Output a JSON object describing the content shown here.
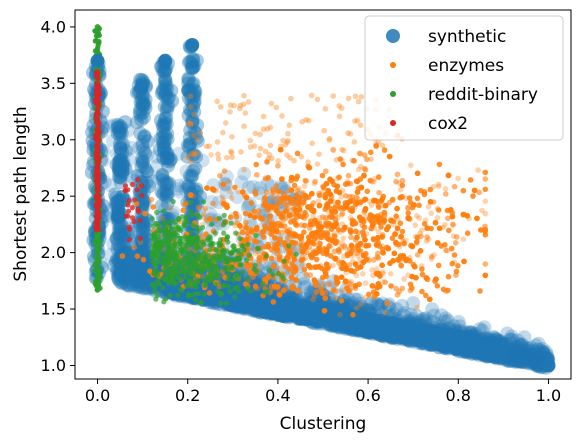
{
  "chart_data": {
    "type": "scatter",
    "title": "",
    "xlabel": "Clustering",
    "ylabel": "Shortest path length",
    "xlim": [
      -0.05,
      1.05
    ],
    "ylim": [
      0.88,
      4.15
    ],
    "xticks": [
      "0.0",
      "0.2",
      "0.4",
      "0.6",
      "0.8",
      "1.0"
    ],
    "yticks": [
      "1.0",
      "1.5",
      "2.0",
      "2.5",
      "3.0",
      "3.5",
      "4.0"
    ],
    "grid": false,
    "legend_position": "top-right",
    "series": [
      {
        "name": "synthetic",
        "color": "#1f77b4",
        "marker_size": "large"
      },
      {
        "name": "enzymes",
        "color": "#ff7f0e",
        "marker_size": "small"
      },
      {
        "name": "reddit-binary",
        "color": "#2ca02c",
        "marker_size": "small"
      },
      {
        "name": "cox2",
        "color": "#d62728",
        "marker_size": "small"
      }
    ],
    "notable_points": [
      {
        "series": "synthetic",
        "x": 1.0,
        "y": 1.0
      },
      {
        "series": "synthetic",
        "x": 0.21,
        "y": 3.84
      },
      {
        "series": "synthetic",
        "x": 0.15,
        "y": 3.7
      },
      {
        "series": "synthetic",
        "x": 0.0,
        "y": 3.7
      },
      {
        "series": "reddit-binary",
        "x": 0.0,
        "y": 4.0
      },
      {
        "series": "reddit-binary",
        "x": 0.0,
        "y": 1.67
      },
      {
        "series": "enzymes",
        "x": 0.85,
        "y": 2.2
      },
      {
        "series": "cox2",
        "x": 0.0,
        "y": 3.6
      }
    ]
  }
}
